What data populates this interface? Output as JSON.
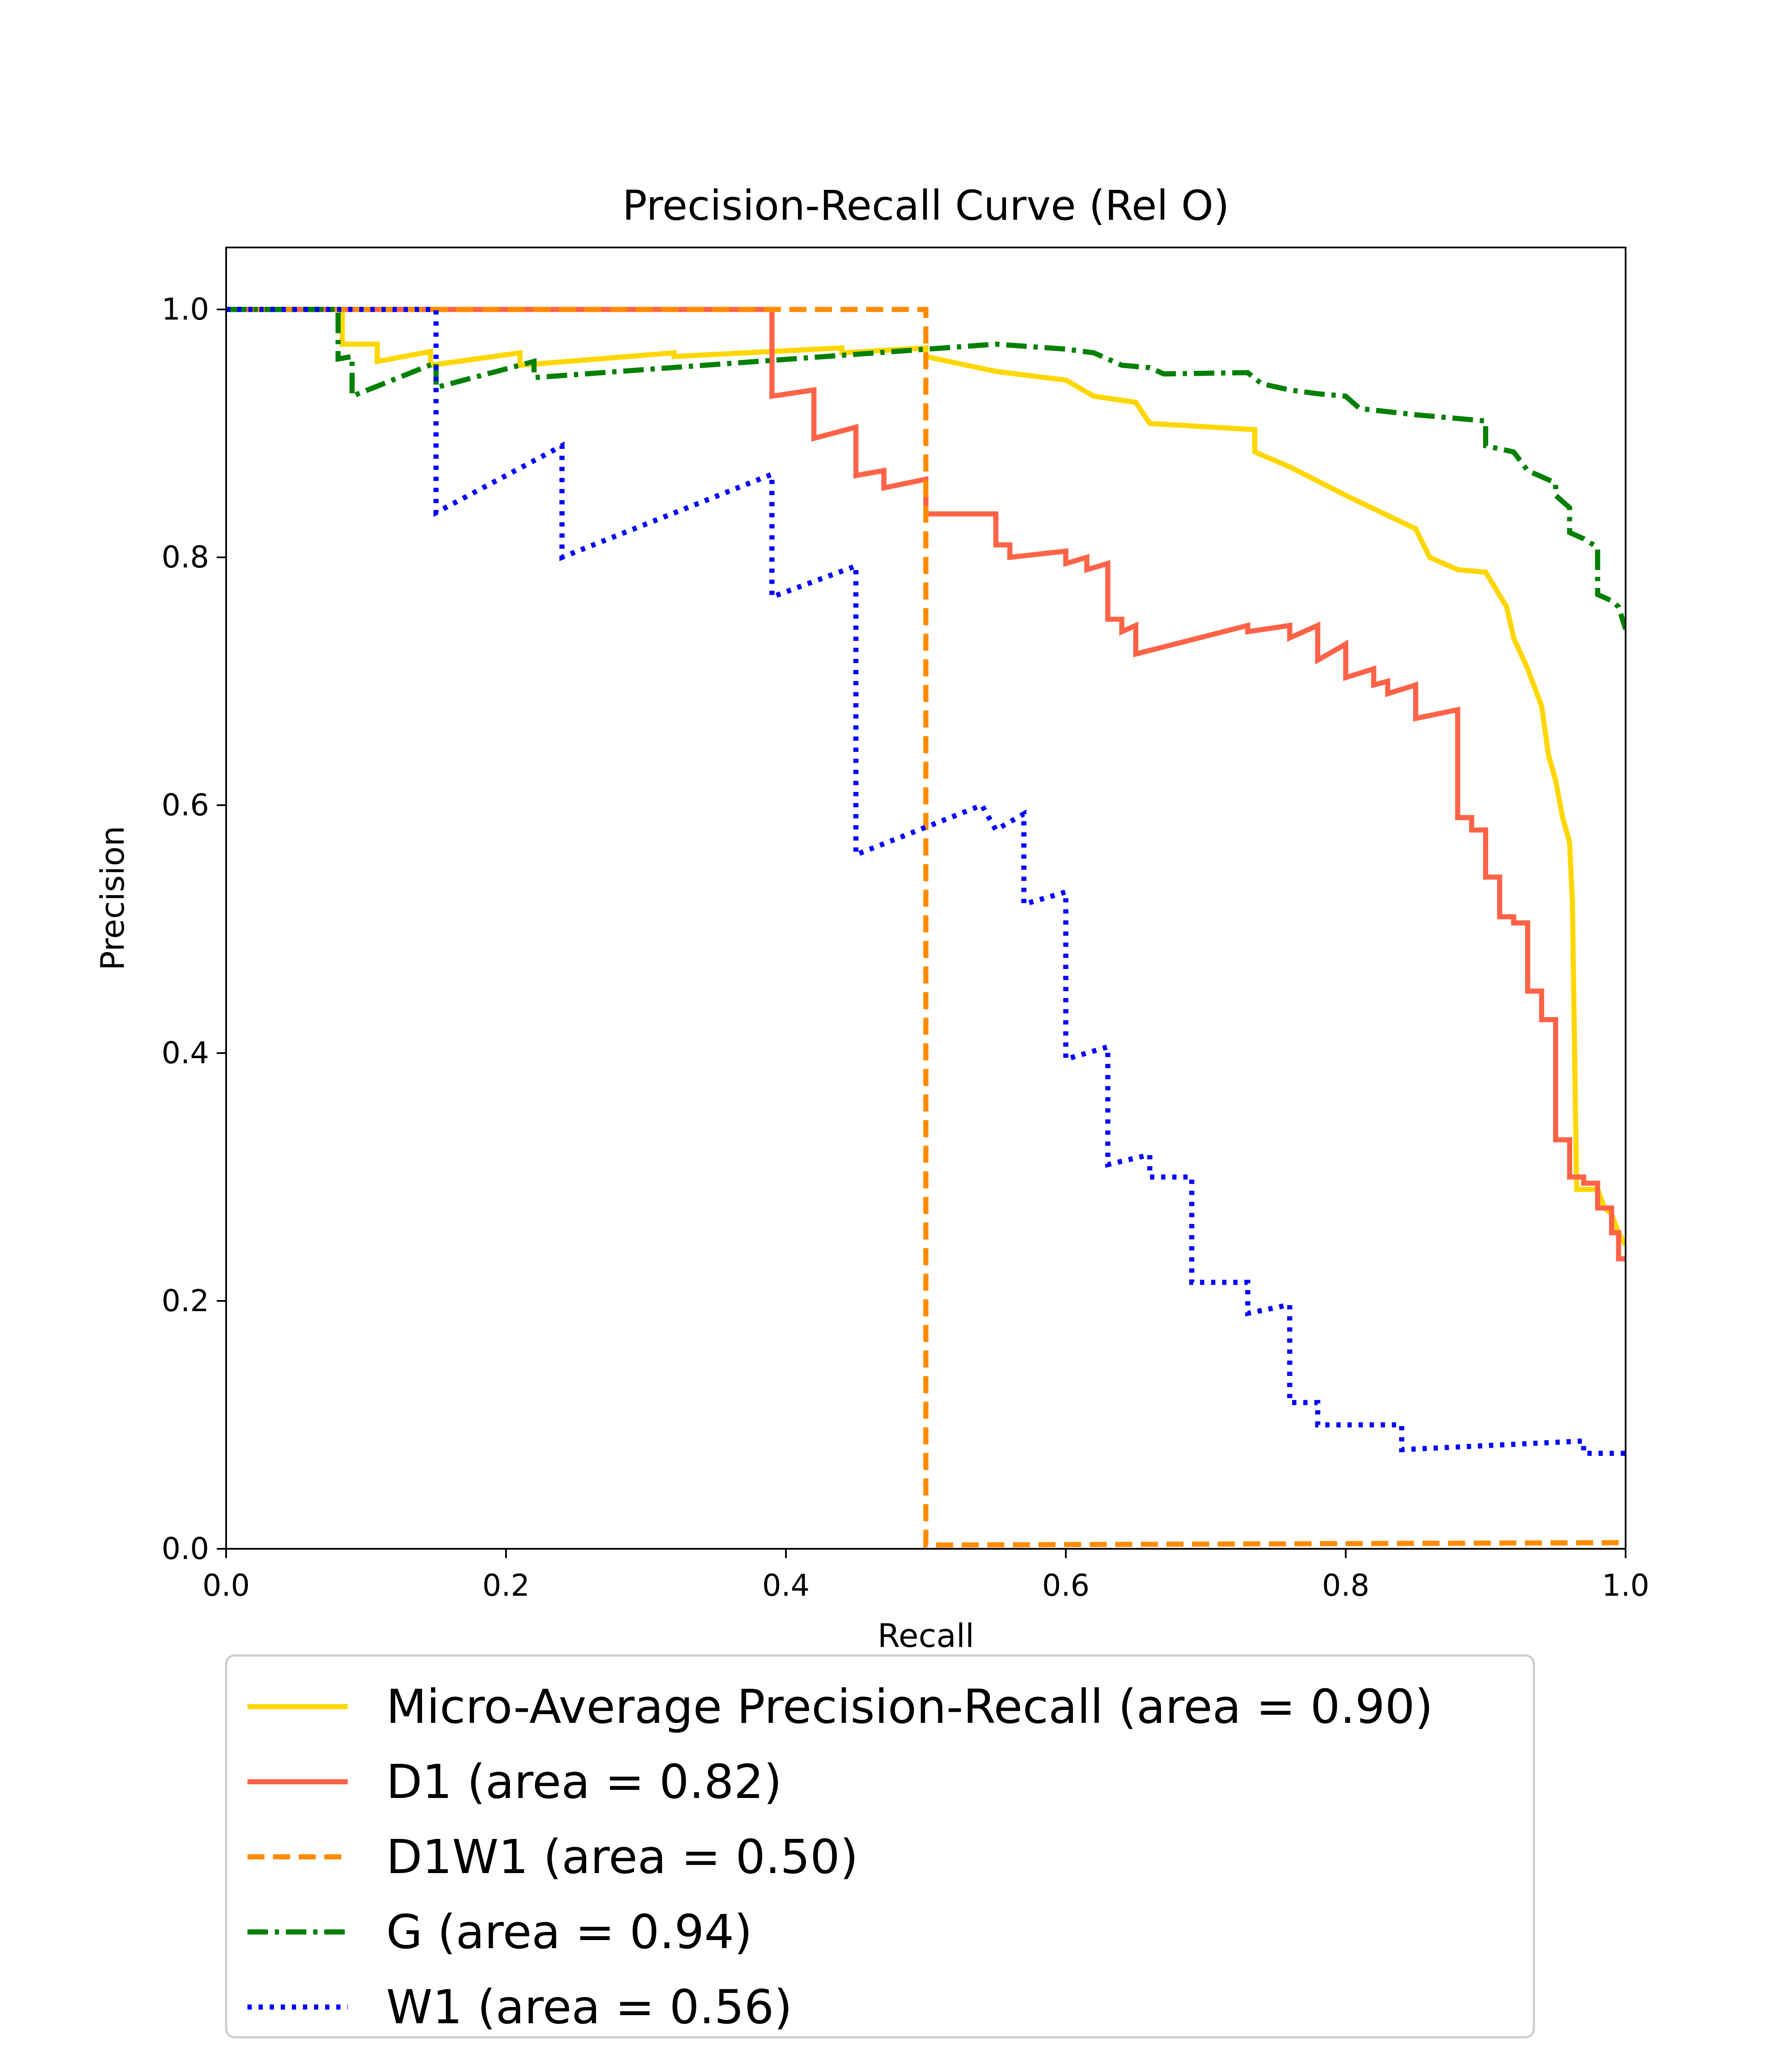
{
  "chart_data": {
    "type": "line",
    "title": "Precision-Recall Curve (Rel O)",
    "xlabel": "Recall",
    "ylabel": "Precision",
    "xlim": [
      0.0,
      1.0
    ],
    "ylim": [
      0.0,
      1.05
    ],
    "xticks": [
      "0.0",
      "0.2",
      "0.4",
      "0.6",
      "0.8",
      "1.0"
    ],
    "yticks": [
      "0.0",
      "0.2",
      "0.4",
      "0.6",
      "0.8",
      "1.0"
    ],
    "grid": false,
    "legend_position": "below plot",
    "series": [
      {
        "name": "Micro-Average Precision-Recall (area = 0.90)",
        "color": "#FFD700",
        "style": "solid",
        "points": [
          [
            0.0,
            1.0
          ],
          [
            0.083,
            1.0
          ],
          [
            0.083,
            0.972
          ],
          [
            0.108,
            0.972
          ],
          [
            0.108,
            0.958
          ],
          [
            0.146,
            0.966
          ],
          [
            0.146,
            0.955
          ],
          [
            0.21,
            0.965
          ],
          [
            0.21,
            0.955
          ],
          [
            0.32,
            0.965
          ],
          [
            0.32,
            0.962
          ],
          [
            0.44,
            0.969
          ],
          [
            0.44,
            0.965
          ],
          [
            0.5,
            0.969
          ],
          [
            0.5,
            0.962
          ],
          [
            0.55,
            0.95
          ],
          [
            0.6,
            0.943
          ],
          [
            0.62,
            0.93
          ],
          [
            0.65,
            0.925
          ],
          [
            0.66,
            0.908
          ],
          [
            0.72,
            0.904
          ],
          [
            0.735,
            0.903
          ],
          [
            0.735,
            0.885
          ],
          [
            0.76,
            0.873
          ],
          [
            0.8,
            0.85
          ],
          [
            0.85,
            0.823
          ],
          [
            0.86,
            0.8
          ],
          [
            0.88,
            0.79
          ],
          [
            0.9,
            0.788
          ],
          [
            0.915,
            0.76
          ],
          [
            0.92,
            0.735
          ],
          [
            0.93,
            0.71
          ],
          [
            0.94,
            0.68
          ],
          [
            0.945,
            0.64
          ],
          [
            0.95,
            0.62
          ],
          [
            0.955,
            0.59
          ],
          [
            0.96,
            0.57
          ],
          [
            0.962,
            0.52
          ],
          [
            0.965,
            0.29
          ],
          [
            0.97,
            0.29
          ],
          [
            0.98,
            0.29
          ],
          [
            0.985,
            0.275
          ],
          [
            0.99,
            0.27
          ],
          [
            0.995,
            0.255
          ],
          [
            1.0,
            0.245
          ]
        ]
      },
      {
        "name": "D1 (area = 0.82)",
        "color": "#FF6347",
        "style": "solid",
        "points": [
          [
            0.0,
            1.0
          ],
          [
            0.39,
            1.0
          ],
          [
            0.39,
            0.93
          ],
          [
            0.42,
            0.935
          ],
          [
            0.42,
            0.896
          ],
          [
            0.45,
            0.905
          ],
          [
            0.45,
            0.866
          ],
          [
            0.47,
            0.87
          ],
          [
            0.47,
            0.856
          ],
          [
            0.5,
            0.863
          ],
          [
            0.5,
            0.835
          ],
          [
            0.55,
            0.835
          ],
          [
            0.55,
            0.81
          ],
          [
            0.56,
            0.81
          ],
          [
            0.56,
            0.8
          ],
          [
            0.6,
            0.805
          ],
          [
            0.6,
            0.795
          ],
          [
            0.615,
            0.8
          ],
          [
            0.615,
            0.79
          ],
          [
            0.63,
            0.795
          ],
          [
            0.63,
            0.75
          ],
          [
            0.64,
            0.75
          ],
          [
            0.64,
            0.74
          ],
          [
            0.65,
            0.745
          ],
          [
            0.65,
            0.722
          ],
          [
            0.73,
            0.745
          ],
          [
            0.73,
            0.74
          ],
          [
            0.76,
            0.745
          ],
          [
            0.76,
            0.735
          ],
          [
            0.78,
            0.745
          ],
          [
            0.78,
            0.717
          ],
          [
            0.8,
            0.73
          ],
          [
            0.8,
            0.703
          ],
          [
            0.82,
            0.71
          ],
          [
            0.82,
            0.697
          ],
          [
            0.83,
            0.7
          ],
          [
            0.83,
            0.69
          ],
          [
            0.85,
            0.697
          ],
          [
            0.85,
            0.67
          ],
          [
            0.88,
            0.677
          ],
          [
            0.88,
            0.59
          ],
          [
            0.89,
            0.59
          ],
          [
            0.89,
            0.58
          ],
          [
            0.9,
            0.58
          ],
          [
            0.9,
            0.542
          ],
          [
            0.91,
            0.542
          ],
          [
            0.91,
            0.51
          ],
          [
            0.92,
            0.51
          ],
          [
            0.92,
            0.505
          ],
          [
            0.93,
            0.505
          ],
          [
            0.93,
            0.45
          ],
          [
            0.94,
            0.45
          ],
          [
            0.94,
            0.427
          ],
          [
            0.95,
            0.427
          ],
          [
            0.95,
            0.33
          ],
          [
            0.96,
            0.33
          ],
          [
            0.96,
            0.3
          ],
          [
            0.97,
            0.3
          ],
          [
            0.97,
            0.295
          ],
          [
            0.98,
            0.295
          ],
          [
            0.98,
            0.275
          ],
          [
            0.99,
            0.275
          ],
          [
            0.99,
            0.255
          ],
          [
            0.995,
            0.255
          ],
          [
            0.995,
            0.234
          ],
          [
            1.0,
            0.234
          ]
        ]
      },
      {
        "name": "D1W1 (area = 0.50)",
        "color": "#FF8C00",
        "style": "dashed",
        "points": [
          [
            0.0,
            1.0
          ],
          [
            0.5,
            1.0
          ],
          [
            0.5,
            0.003
          ],
          [
            1.0,
            0.005
          ]
        ]
      },
      {
        "name": "G (area = 0.94)",
        "color": "#008000",
        "style": "dashdot",
        "points": [
          [
            0.0,
            1.0
          ],
          [
            0.08,
            1.0
          ],
          [
            0.08,
            0.96
          ],
          [
            0.09,
            0.962
          ],
          [
            0.09,
            0.93
          ],
          [
            0.15,
            0.957
          ],
          [
            0.15,
            0.937
          ],
          [
            0.22,
            0.958
          ],
          [
            0.22,
            0.945
          ],
          [
            0.55,
            0.972
          ],
          [
            0.6,
            0.968
          ],
          [
            0.62,
            0.965
          ],
          [
            0.64,
            0.955
          ],
          [
            0.66,
            0.953
          ],
          [
            0.67,
            0.948
          ],
          [
            0.73,
            0.949
          ],
          [
            0.74,
            0.94
          ],
          [
            0.76,
            0.935
          ],
          [
            0.78,
            0.932
          ],
          [
            0.8,
            0.93
          ],
          [
            0.81,
            0.92
          ],
          [
            0.85,
            0.915
          ],
          [
            0.9,
            0.91
          ],
          [
            0.9,
            0.89
          ],
          [
            0.92,
            0.885
          ],
          [
            0.93,
            0.87
          ],
          [
            0.95,
            0.86
          ],
          [
            0.95,
            0.85
          ],
          [
            0.96,
            0.84
          ],
          [
            0.96,
            0.82
          ],
          [
            0.97,
            0.815
          ],
          [
            0.98,
            0.808
          ],
          [
            0.98,
            0.77
          ],
          [
            0.99,
            0.765
          ],
          [
            0.995,
            0.76
          ],
          [
            1.0,
            0.742
          ]
        ]
      },
      {
        "name": "W1 (area = 0.56)",
        "color": "#0000FF",
        "style": "dotted",
        "points": [
          [
            0.0,
            1.0
          ],
          [
            0.15,
            1.0
          ],
          [
            0.15,
            0.836
          ],
          [
            0.24,
            0.89
          ],
          [
            0.24,
            0.8
          ],
          [
            0.39,
            0.867
          ],
          [
            0.39,
            0.768
          ],
          [
            0.45,
            0.793
          ],
          [
            0.45,
            0.56
          ],
          [
            0.54,
            0.6
          ],
          [
            0.55,
            0.58
          ],
          [
            0.57,
            0.593
          ],
          [
            0.57,
            0.52
          ],
          [
            0.6,
            0.53
          ],
          [
            0.6,
            0.395
          ],
          [
            0.63,
            0.405
          ],
          [
            0.63,
            0.31
          ],
          [
            0.66,
            0.318
          ],
          [
            0.66,
            0.3
          ],
          [
            0.69,
            0.3
          ],
          [
            0.69,
            0.215
          ],
          [
            0.73,
            0.215
          ],
          [
            0.73,
            0.19
          ],
          [
            0.76,
            0.197
          ],
          [
            0.76,
            0.118
          ],
          [
            0.78,
            0.118
          ],
          [
            0.78,
            0.1
          ],
          [
            0.84,
            0.1
          ],
          [
            0.84,
            0.08
          ],
          [
            0.97,
            0.087
          ],
          [
            0.97,
            0.077
          ],
          [
            1.0,
            0.077
          ]
        ]
      }
    ]
  }
}
